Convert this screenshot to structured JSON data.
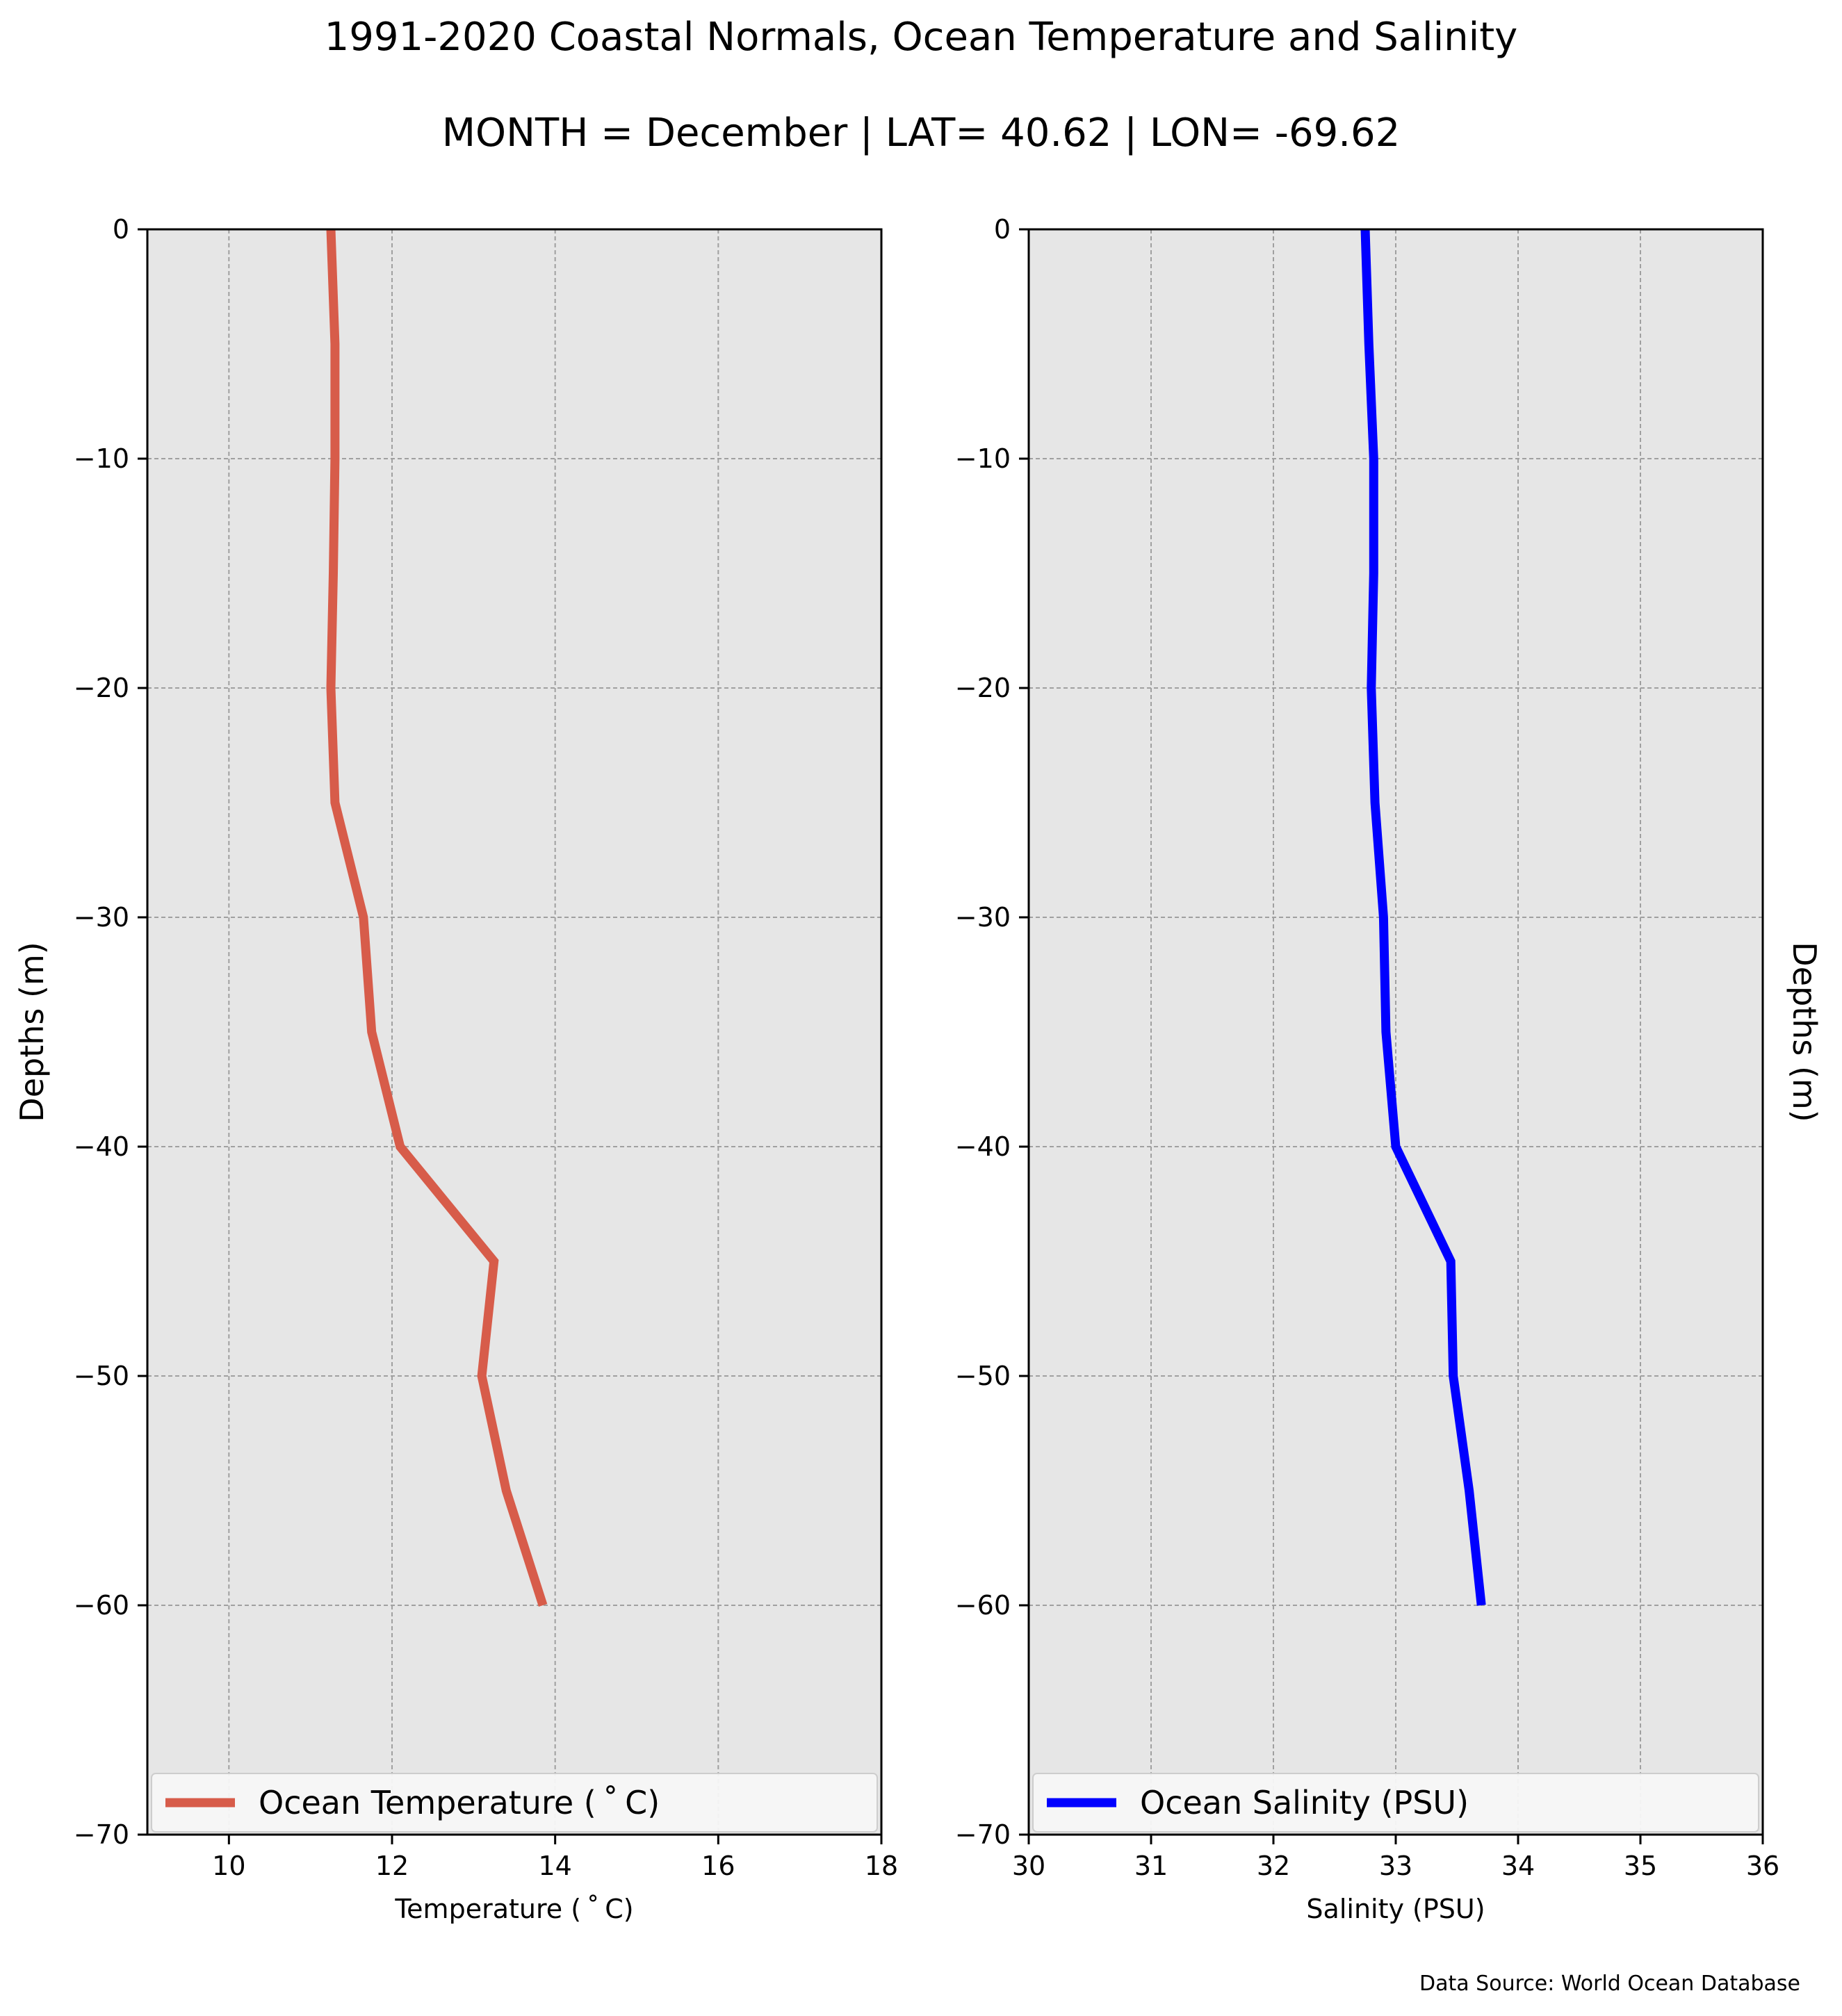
{
  "title": "1991-2020 Coastal Normals, Ocean Temperature and Salinity",
  "subtitle": "MONTH = December | LAT= 40.62 | LON= -69.62",
  "source": "Data Source: World Ocean Database",
  "colors": {
    "temperature": "#d75c4a",
    "salinity": "#0000ff",
    "plot_bg": "#e6e6e6",
    "grid": "#a0a0a0"
  },
  "chart_data": [
    {
      "type": "line",
      "xlabel": "Temperature ($^\\circ$C)",
      "xlabel_text": "Temperature ( ˚ C)",
      "ylabel": "Depths (m)",
      "xlim": [
        9,
        18
      ],
      "ylim": [
        -70,
        0
      ],
      "xticks": [
        10,
        12,
        14,
        16,
        18
      ],
      "yticks": [
        0,
        -10,
        -20,
        -30,
        -40,
        -50,
        -60,
        -70
      ],
      "grid": true,
      "legend_placement": "lower",
      "series": [
        {
          "name": "Ocean Temperature ( ˚ C)",
          "color": "#d75c4a",
          "x": [
            11.25,
            11.3,
            11.3,
            11.28,
            11.25,
            11.3,
            11.65,
            11.75,
            12.1,
            13.25,
            13.1,
            13.4,
            13.85
          ],
          "y": [
            0,
            -5,
            -10,
            -15,
            -20,
            -25,
            -30,
            -35,
            -40,
            -45,
            -50,
            -55,
            -60
          ]
        }
      ]
    },
    {
      "type": "line",
      "xlabel": "Salinity (PSU)",
      "xlabel_text": "Salinity (PSU)",
      "ylabel": "Depths (m)",
      "xlim": [
        30,
        36
      ],
      "ylim": [
        -70,
        0
      ],
      "xticks": [
        30,
        31,
        32,
        33,
        34,
        35,
        36
      ],
      "yticks": [
        0,
        -10,
        -20,
        -30,
        -40,
        -50,
        -60,
        -70
      ],
      "grid": true,
      "legend_placement": "lower",
      "series": [
        {
          "name": "Ocean Salinity (PSU)",
          "color": "#0000ff",
          "x": [
            32.75,
            32.78,
            32.82,
            32.82,
            32.8,
            32.83,
            32.9,
            32.92,
            33.0,
            33.45,
            33.47,
            33.6,
            33.7
          ],
          "y": [
            0,
            -5,
            -10,
            -15,
            -20,
            -25,
            -30,
            -35,
            -40,
            -45,
            -50,
            -55,
            -60
          ]
        }
      ]
    }
  ]
}
